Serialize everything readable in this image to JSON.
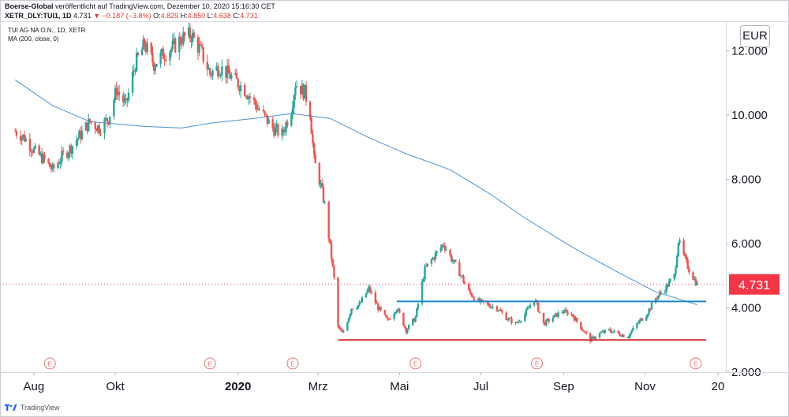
{
  "header": {
    "publisher": "Boerse-Global",
    "published_text": "veröffentlicht auf TradingView.com, Dezember 10, 2020 15:16:30 CET",
    "symbol": "XETR_DLY:TUI1, 1D",
    "last": "4.731",
    "change": "▼ −0.187 (−3.8%)",
    "o_label": "O:",
    "o_value": "4.829",
    "h_label": "H:",
    "h_value": "4.850",
    "l_label": "L:",
    "l_value": "4.638",
    "c_label": "C:",
    "c_value": "4.731"
  },
  "legend": {
    "instrument": "TUI AG NA O.N., 1D, XETR",
    "indicator": "MA (200, close, 0)"
  },
  "currency": "EUR",
  "footer": {
    "brand": "TradingView"
  },
  "colors": {
    "up": "#26a69a",
    "down": "#ef5350",
    "ma": "#4a90d9",
    "support_blue": "#1e88c5",
    "support_red": "#d32f2f",
    "price_tag": "#f23645",
    "earnings": "#e57373"
  },
  "chart_data": {
    "type": "candlestick",
    "title": "TUI AG NA O.N., 1D, XETR",
    "ylim": [
      2.0,
      12.9
    ],
    "y_ticks": [
      "2.000",
      "4.000",
      "6.000",
      "8.000",
      "10.000",
      "12.000"
    ],
    "x_ticks": [
      "Aug",
      "Okt",
      "2020",
      "Mrz",
      "Mai",
      "Jul",
      "Sep",
      "Nov",
      "20"
    ],
    "last_price": {
      "value": 4.731,
      "label": "4.731"
    },
    "earnings_markers": [
      "E",
      "E",
      "E",
      "E",
      "E",
      "E"
    ],
    "close_path": [
      [
        "2019-07-18",
        9.5
      ],
      [
        "2019-07-25",
        9.3
      ],
      [
        "2019-08-01",
        8.9
      ],
      [
        "2019-08-09",
        8.6
      ],
      [
        "2019-08-15",
        8.3
      ],
      [
        "2019-08-22",
        8.7
      ],
      [
        "2019-08-29",
        9.0
      ],
      [
        "2019-09-05",
        9.4
      ],
      [
        "2019-09-12",
        9.8
      ],
      [
        "2019-09-19",
        9.6
      ],
      [
        "2019-09-26",
        9.9
      ],
      [
        "2019-10-02",
        10.8
      ],
      [
        "2019-10-09",
        10.3
      ],
      [
        "2019-10-16",
        11.6
      ],
      [
        "2019-10-23",
        12.2
      ],
      [
        "2019-10-30",
        11.6
      ],
      [
        "2019-11-06",
        11.9
      ],
      [
        "2019-11-13",
        12.1
      ],
      [
        "2019-11-20",
        12.4
      ],
      [
        "2019-11-27",
        12.5
      ],
      [
        "2019-12-04",
        12.0
      ],
      [
        "2019-12-11",
        11.3
      ],
      [
        "2019-12-18",
        11.5
      ],
      [
        "2019-12-27",
        11.2
      ],
      [
        "2020-01-06",
        10.8
      ],
      [
        "2020-01-13",
        10.4
      ],
      [
        "2020-01-20",
        10.0
      ],
      [
        "2020-01-27",
        9.6
      ],
      [
        "2020-02-03",
        9.4
      ],
      [
        "2020-02-10",
        10.2
      ],
      [
        "2020-02-13",
        11.0
      ],
      [
        "2020-02-20",
        10.7
      ],
      [
        "2020-02-24",
        10.1
      ],
      [
        "2020-02-27",
        8.6
      ],
      [
        "2020-03-03",
        7.8
      ],
      [
        "2020-03-06",
        7.2
      ],
      [
        "2020-03-10",
        5.9
      ],
      [
        "2020-03-13",
        4.9
      ],
      [
        "2020-03-16",
        3.4
      ],
      [
        "2020-03-19",
        3.2
      ],
      [
        "2020-03-23",
        3.6
      ],
      [
        "2020-03-26",
        4.0
      ],
      [
        "2020-04-01",
        4.1
      ],
      [
        "2020-04-08",
        4.6
      ],
      [
        "2020-04-15",
        4.0
      ],
      [
        "2020-04-22",
        3.6
      ],
      [
        "2020-04-29",
        4.0
      ],
      [
        "2020-05-06",
        3.3
      ],
      [
        "2020-05-13",
        3.7
      ],
      [
        "2020-05-20",
        5.2
      ],
      [
        "2020-05-27",
        5.6
      ],
      [
        "2020-06-03",
        6.0
      ],
      [
        "2020-06-08",
        5.6
      ],
      [
        "2020-06-15",
        5.1
      ],
      [
        "2020-06-22",
        4.5
      ],
      [
        "2020-06-29",
        4.2
      ],
      [
        "2020-07-06",
        4.1
      ],
      [
        "2020-07-13",
        4.0
      ],
      [
        "2020-07-20",
        3.7
      ],
      [
        "2020-07-27",
        3.5
      ],
      [
        "2020-08-03",
        3.8
      ],
      [
        "2020-08-10",
        4.3
      ],
      [
        "2020-08-17",
        3.5
      ],
      [
        "2020-08-24",
        3.7
      ],
      [
        "2020-08-31",
        3.9
      ],
      [
        "2020-09-07",
        3.8
      ],
      [
        "2020-09-14",
        3.4
      ],
      [
        "2020-09-21",
        3.0
      ],
      [
        "2020-09-28",
        3.2
      ],
      [
        "2020-10-05",
        3.3
      ],
      [
        "2020-10-12",
        3.2
      ],
      [
        "2020-10-19",
        3.1
      ],
      [
        "2020-10-26",
        3.5
      ],
      [
        "2020-11-02",
        3.8
      ],
      [
        "2020-11-09",
        4.3
      ],
      [
        "2020-11-16",
        4.6
      ],
      [
        "2020-11-23",
        5.0
      ],
      [
        "2020-11-26",
        6.1
      ],
      [
        "2020-12-01",
        5.5
      ],
      [
        "2020-12-04",
        5.2
      ],
      [
        "2020-12-10",
        4.731
      ]
    ],
    "ma200": [
      [
        "2019-07-18",
        11.1
      ],
      [
        "2019-08-15",
        10.3
      ],
      [
        "2019-09-12",
        9.8
      ],
      [
        "2019-10-23",
        9.65
      ],
      [
        "2019-11-20",
        9.6
      ],
      [
        "2019-12-11",
        9.75
      ],
      [
        "2020-01-13",
        9.9
      ],
      [
        "2020-02-10",
        10.05
      ],
      [
        "2020-03-10",
        9.9
      ],
      [
        "2020-04-08",
        9.3
      ],
      [
        "2020-05-06",
        8.8
      ],
      [
        "2020-06-08",
        8.3
      ],
      [
        "2020-07-06",
        7.6
      ],
      [
        "2020-08-03",
        6.8
      ],
      [
        "2020-09-07",
        5.9
      ],
      [
        "2020-10-12",
        5.1
      ],
      [
        "2020-11-09",
        4.5
      ],
      [
        "2020-12-10",
        4.1
      ]
    ],
    "support_lines": [
      {
        "from": "2020-04-29",
        "to": "2020-12-10",
        "value": 4.2,
        "color": "blue"
      },
      {
        "from": "2020-03-16",
        "to": "2020-12-10",
        "value": 3.0,
        "color": "red"
      }
    ]
  }
}
